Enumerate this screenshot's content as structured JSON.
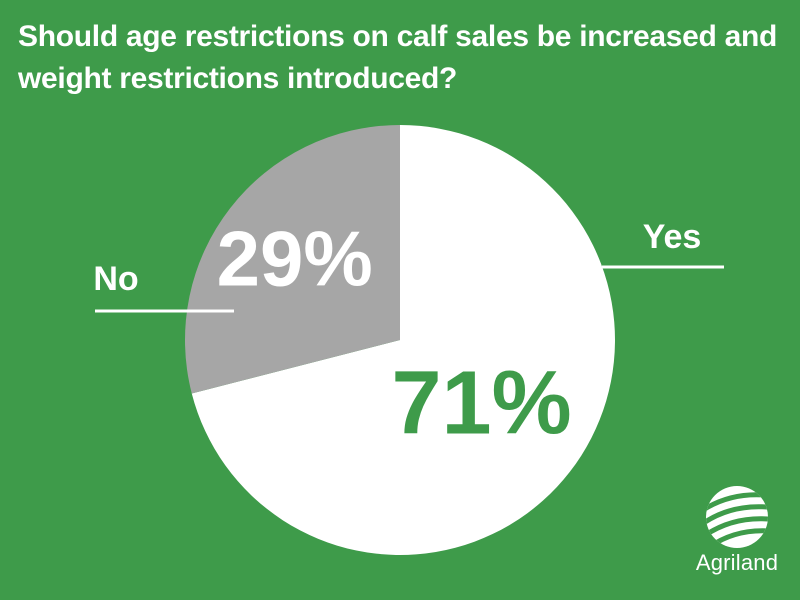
{
  "chart_data": {
    "type": "pie",
    "title": "Should age restrictions on calf sales be increased and weight restrictions introduced?",
    "categories": [
      "Yes",
      "No"
    ],
    "values": [
      71,
      29
    ],
    "value_labels": [
      "71%",
      "29%"
    ],
    "colors": [
      "#ffffff",
      "#a6a6a6"
    ],
    "label_colors": [
      "#3e9b4a",
      "#ffffff"
    ],
    "background": "#3e9b4a",
    "legend": "none"
  },
  "brand": {
    "name": "Agriland",
    "logo_icon": "agriland-field-logo-icon"
  }
}
